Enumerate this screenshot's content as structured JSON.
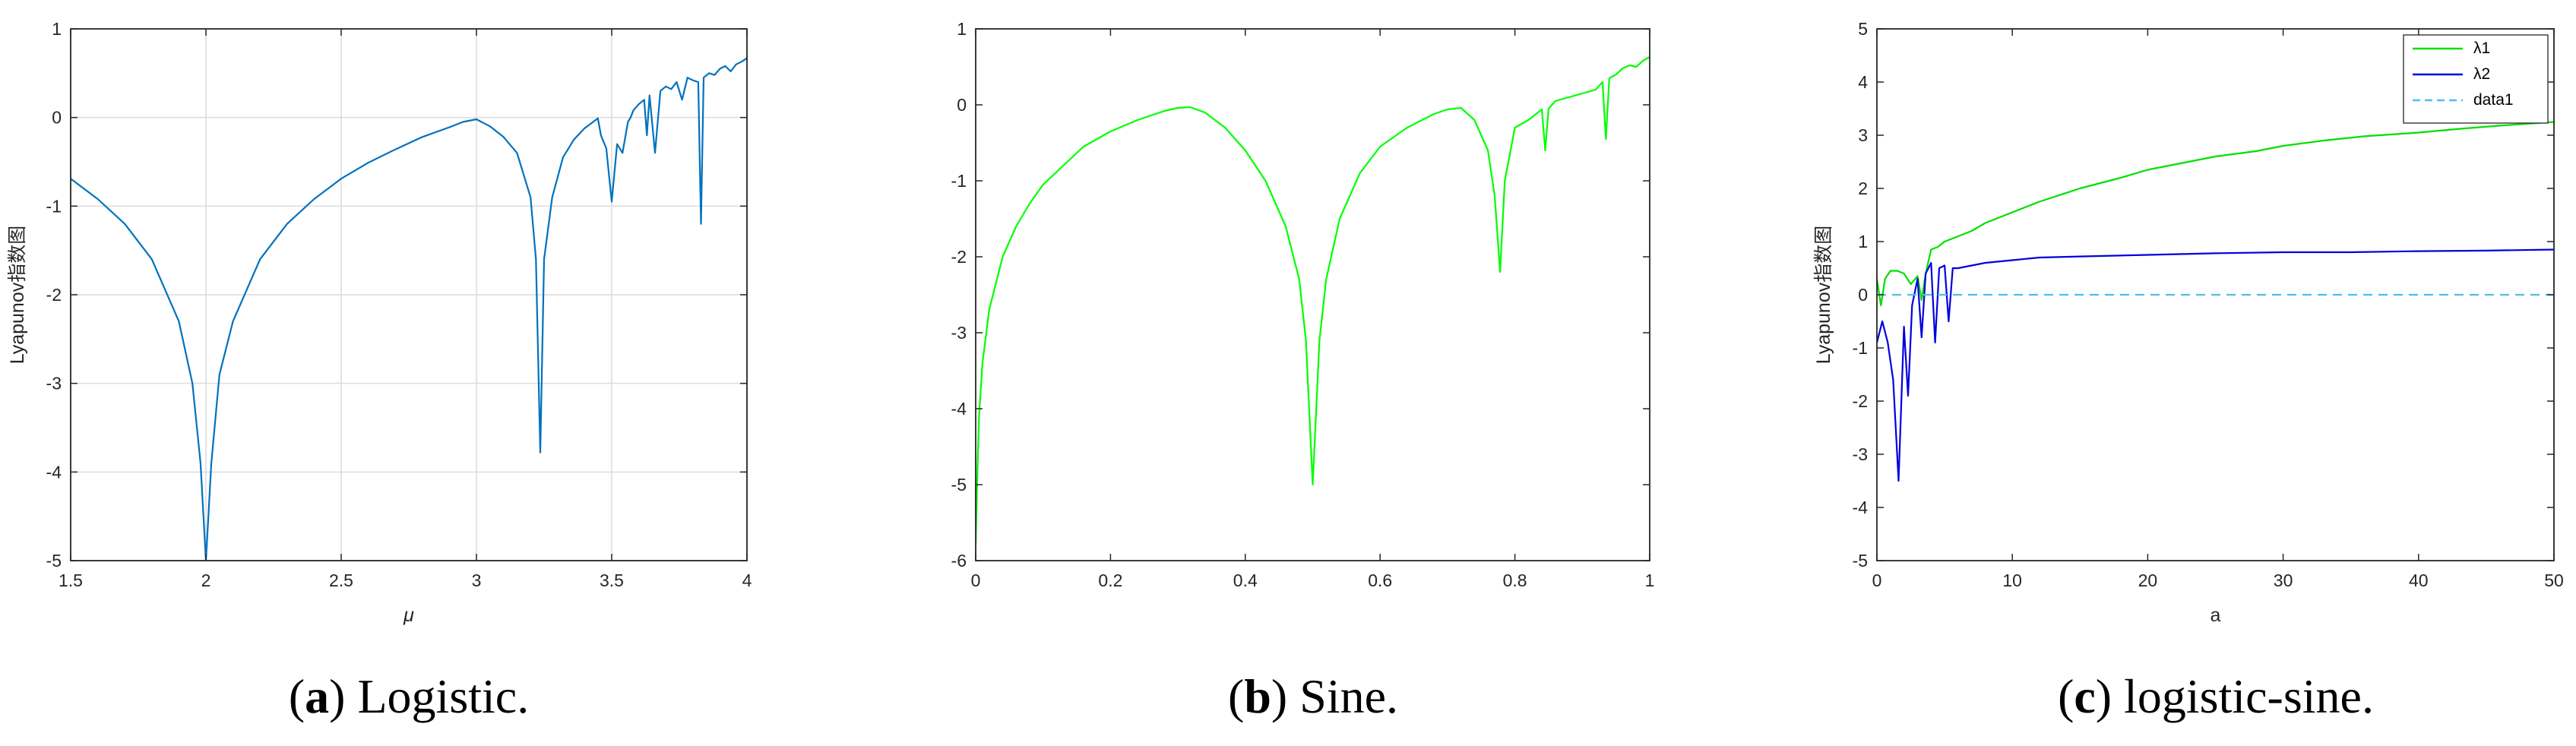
{
  "chart_data": [
    {
      "type": "line",
      "caption_letter": "a",
      "caption_text": " Logistic.",
      "xlabel": "μ",
      "ylabel": "Lyapunov指数图",
      "xlim": [
        1.5,
        4
      ],
      "ylim": [
        -5,
        1
      ],
      "xticks": [
        "1.5",
        "2",
        "2.5",
        "3",
        "3.5",
        "4"
      ],
      "xtick_values": [
        1.5,
        2,
        2.5,
        3,
        3.5,
        4
      ],
      "yticks": [
        "-5",
        "-4",
        "-3",
        "-2",
        "-1",
        "0",
        "1"
      ],
      "ytick_values": [
        -5,
        -4,
        -3,
        -2,
        -1,
        0,
        1
      ],
      "grid": true,
      "legend": null,
      "series": [
        {
          "color": "#0072BD",
          "style": "solid",
          "x": [
            1.5,
            1.6,
            1.7,
            1.8,
            1.9,
            1.95,
            1.98,
            2.0,
            2.02,
            2.05,
            2.1,
            2.2,
            2.3,
            2.4,
            2.5,
            2.6,
            2.7,
            2.8,
            2.9,
            2.95,
            3.0,
            3.05,
            3.1,
            3.15,
            3.2,
            3.22,
            3.236,
            3.25,
            3.28,
            3.32,
            3.36,
            3.4,
            3.44,
            3.449,
            3.46,
            3.48,
            3.5,
            3.52,
            3.54,
            3.56,
            3.57,
            3.58,
            3.6,
            3.62,
            3.63,
            3.64,
            3.66,
            3.68,
            3.7,
            3.72,
            3.74,
            3.76,
            3.78,
            3.8,
            3.82,
            3.83,
            3.84,
            3.86,
            3.88,
            3.9,
            3.92,
            3.94,
            3.96,
            3.98,
            4.0
          ],
          "y": [
            -0.69,
            -0.92,
            -1.2,
            -1.6,
            -2.3,
            -3.0,
            -3.9,
            -5.0,
            -3.9,
            -2.9,
            -2.3,
            -1.6,
            -1.2,
            -0.92,
            -0.69,
            -0.51,
            -0.36,
            -0.22,
            -0.11,
            -0.05,
            -0.02,
            -0.1,
            -0.22,
            -0.4,
            -0.9,
            -1.6,
            -3.78,
            -1.6,
            -0.9,
            -0.45,
            -0.25,
            -0.12,
            -0.03,
            -0.01,
            -0.2,
            -0.35,
            -0.95,
            -0.3,
            -0.4,
            -0.05,
            0.0,
            0.08,
            0.15,
            0.2,
            -0.2,
            0.25,
            -0.4,
            0.3,
            0.35,
            0.32,
            0.4,
            0.2,
            0.45,
            0.42,
            0.4,
            -1.2,
            0.45,
            0.5,
            0.48,
            0.55,
            0.58,
            0.52,
            0.6,
            0.63,
            0.67
          ]
        }
      ]
    },
    {
      "type": "line",
      "caption_letter": "b",
      "caption_text": " Sine.",
      "xlabel": "",
      "ylabel": "",
      "xlim": [
        0,
        1
      ],
      "ylim": [
        -6,
        1
      ],
      "xticks": [
        "0",
        "0.2",
        "0.4",
        "0.6",
        "0.8",
        "1"
      ],
      "xtick_values": [
        0,
        0.2,
        0.4,
        0.6,
        0.8,
        1
      ],
      "yticks": [
        "-6",
        "-5",
        "-4",
        "-3",
        "-2",
        "-1",
        "0",
        "1"
      ],
      "ytick_values": [
        -6,
        -5,
        -4,
        -3,
        -2,
        -1,
        0,
        1
      ],
      "grid": false,
      "legend": null,
      "series": [
        {
          "color": "#00FF00",
          "style": "solid",
          "x": [
            0.0,
            0.002,
            0.005,
            0.01,
            0.02,
            0.04,
            0.06,
            0.08,
            0.1,
            0.13,
            0.16,
            0.2,
            0.24,
            0.28,
            0.3,
            0.318,
            0.34,
            0.37,
            0.4,
            0.43,
            0.46,
            0.48,
            0.49,
            0.5,
            0.51,
            0.52,
            0.54,
            0.57,
            0.6,
            0.64,
            0.68,
            0.7,
            0.72,
            0.74,
            0.76,
            0.77,
            0.778,
            0.785,
            0.8,
            0.82,
            0.84,
            0.845,
            0.85,
            0.86,
            0.88,
            0.9,
            0.92,
            0.93,
            0.935,
            0.94,
            0.95,
            0.96,
            0.97,
            0.98,
            0.99,
            1.0
          ],
          "y": [
            -5.8,
            -5.0,
            -4.1,
            -3.4,
            -2.7,
            -2.0,
            -1.6,
            -1.3,
            -1.05,
            -0.8,
            -0.55,
            -0.35,
            -0.2,
            -0.08,
            -0.04,
            -0.03,
            -0.1,
            -0.3,
            -0.6,
            -1.0,
            -1.6,
            -2.3,
            -3.1,
            -5.0,
            -3.1,
            -2.3,
            -1.5,
            -0.9,
            -0.55,
            -0.3,
            -0.12,
            -0.06,
            -0.04,
            -0.2,
            -0.6,
            -1.2,
            -2.2,
            -1.0,
            -0.3,
            -0.2,
            -0.06,
            -0.6,
            -0.05,
            0.05,
            0.1,
            0.15,
            0.2,
            0.3,
            -0.45,
            0.35,
            0.4,
            0.48,
            0.52,
            0.5,
            0.58,
            0.63
          ]
        }
      ]
    },
    {
      "type": "line",
      "caption_letter": "c",
      "caption_text": " logistic-sine.",
      "xlabel": "a",
      "ylabel": "Lyapunov指数图",
      "xlim": [
        0,
        50
      ],
      "ylim": [
        -5,
        5
      ],
      "xticks": [
        "0",
        "10",
        "20",
        "30",
        "40",
        "50"
      ],
      "xtick_values": [
        0,
        10,
        20,
        30,
        40,
        50
      ],
      "yticks": [
        "-5",
        "-4",
        "-3",
        "-2",
        "-1",
        "0",
        "1",
        "2",
        "3",
        "4",
        "5"
      ],
      "ytick_values": [
        -5,
        -4,
        -3,
        -2,
        -1,
        0,
        1,
        2,
        3,
        4,
        5
      ],
      "grid": false,
      "legend": "top-right",
      "series": [
        {
          "name": "λ1",
          "color": "#00E000",
          "style": "solid",
          "x": [
            0,
            0.3,
            0.6,
            1.0,
            1.5,
            2.0,
            2.5,
            3.0,
            3.3,
            3.6,
            4.0,
            4.5,
            5,
            6,
            7,
            8,
            10,
            12,
            15,
            18,
            20,
            22,
            25,
            28,
            30,
            33,
            36,
            40,
            43,
            46,
            50
          ],
          "y": [
            0.3,
            -0.2,
            0.3,
            0.45,
            0.45,
            0.4,
            0.2,
            0.35,
            -0.1,
            0.4,
            0.85,
            0.9,
            1.0,
            1.1,
            1.2,
            1.35,
            1.55,
            1.75,
            2.0,
            2.2,
            2.35,
            2.45,
            2.6,
            2.7,
            2.8,
            2.9,
            2.98,
            3.05,
            3.12,
            3.18,
            3.25
          ]
        },
        {
          "name": "λ2",
          "color": "#0000E0",
          "style": "solid",
          "x": [
            0,
            0.4,
            0.8,
            1.2,
            1.6,
            2.0,
            2.3,
            2.6,
            3.0,
            3.3,
            3.6,
            4.0,
            4.3,
            4.6,
            5.0,
            5.3,
            5.6,
            6,
            7,
            8,
            10,
            12,
            15,
            20,
            25,
            30,
            35,
            40,
            45,
            50
          ],
          "y": [
            -0.9,
            -0.5,
            -0.9,
            -1.6,
            -3.5,
            -0.6,
            -1.9,
            -0.2,
            0.3,
            -0.8,
            0.4,
            0.6,
            -0.9,
            0.5,
            0.55,
            -0.5,
            0.5,
            0.5,
            0.55,
            0.6,
            0.65,
            0.7,
            0.72,
            0.75,
            0.78,
            0.8,
            0.8,
            0.82,
            0.83,
            0.85
          ]
        },
        {
          "name": "data1",
          "color": "#4DBEEE",
          "style": "dashed",
          "x": [
            0,
            50
          ],
          "y": [
            0,
            0
          ]
        }
      ]
    }
  ]
}
